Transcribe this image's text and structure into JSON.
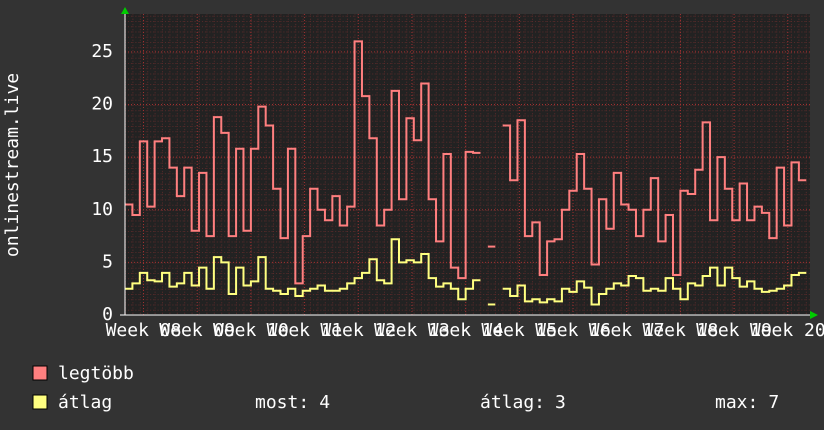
{
  "chart_data": {
    "type": "step-line",
    "y_label": "onlinestream.live",
    "x": [
      0,
      1,
      2,
      3,
      4,
      5,
      6,
      7,
      8,
      9,
      10,
      11,
      12,
      13,
      14,
      15,
      16,
      17,
      18,
      19,
      20,
      21,
      22,
      23,
      24,
      25,
      26,
      27,
      28,
      29,
      30,
      31,
      32,
      33,
      34,
      35,
      36,
      37,
      38,
      39,
      40,
      41,
      42,
      43,
      44,
      45,
      46,
      47,
      48,
      49,
      50,
      51,
      52,
      53,
      54,
      55,
      56,
      57,
      58,
      59,
      60,
      61,
      62,
      63,
      64,
      65,
      66,
      67,
      68,
      69,
      70,
      71,
      72,
      73,
      74,
      75,
      76,
      77,
      78,
      79,
      80,
      81,
      82,
      83,
      84,
      85,
      86,
      87,
      88,
      89,
      90,
      91
    ],
    "xlim": [
      0,
      92.5
    ],
    "xticks": [
      {
        "value": 2.5,
        "label": "Week 08"
      },
      {
        "value": 9.75,
        "label": "Week 09"
      },
      {
        "value": 17,
        "label": "Week 10"
      },
      {
        "value": 24.25,
        "label": "Week 11"
      },
      {
        "value": 31.5,
        "label": "Week 12"
      },
      {
        "value": 38.75,
        "label": "Week 13"
      },
      {
        "value": 46,
        "label": "Week 14"
      },
      {
        "value": 53.25,
        "label": "Week 15"
      },
      {
        "value": 60.5,
        "label": "Week 16"
      },
      {
        "value": 67.75,
        "label": "Week 17"
      },
      {
        "value": 75,
        "label": "Week 18"
      },
      {
        "value": 82.25,
        "label": "Week 19"
      },
      {
        "value": 89.5,
        "label": "Week 20"
      }
    ],
    "ylim": [
      0,
      28.6
    ],
    "yticks": [
      0,
      5,
      10,
      15,
      20,
      25
    ],
    "grid": true,
    "series": [
      {
        "name": "legtöbb",
        "color": "#ff7f7f",
        "values": [
          10.5,
          9.5,
          16.5,
          10.3,
          16.5,
          16.8,
          14,
          11.3,
          14,
          8,
          13.5,
          7.5,
          18.8,
          17.3,
          7.5,
          15.8,
          8,
          15.8,
          19.8,
          18,
          12,
          7.3,
          15.8,
          3,
          7.5,
          12,
          10,
          9,
          11.3,
          8.5,
          10.3,
          26,
          20.8,
          16.8,
          8.5,
          10,
          21.3,
          11,
          18.7,
          16.6,
          22,
          11,
          7,
          15.3,
          4.5,
          3.5,
          15.5,
          15.4,
          null,
          6.5,
          null,
          18,
          12.8,
          18.5,
          7.5,
          8.8,
          3.8,
          7,
          7.2,
          10,
          11.8,
          15.3,
          12,
          4.8,
          11,
          8.2,
          13.5,
          10.5,
          10,
          7.5,
          10,
          13,
          7,
          9.5,
          3.8,
          11.8,
          11.5,
          13.8,
          18.3,
          9,
          15,
          12,
          9,
          12.5,
          9,
          10.3,
          9.7,
          7.3,
          14,
          8.5,
          14.5,
          12.8
        ]
      },
      {
        "name": "átlag",
        "color": "#ffff80",
        "values": [
          2.5,
          3,
          4,
          3.3,
          3.2,
          4,
          2.7,
          3,
          4,
          2.8,
          4.5,
          2.5,
          5.5,
          5,
          2,
          4.5,
          2.8,
          3.2,
          5.5,
          2.5,
          2.3,
          2,
          2.5,
          1.8,
          2.3,
          2.5,
          2.8,
          2.3,
          2.3,
          2.5,
          3,
          3.5,
          4,
          5.3,
          3.3,
          3,
          7.2,
          5,
          5.2,
          5,
          5.8,
          3.5,
          2.7,
          3,
          2.5,
          1.5,
          2.5,
          3.3,
          null,
          1,
          null,
          2.5,
          1.8,
          2.8,
          1.3,
          1.5,
          1.2,
          1.5,
          1.3,
          2.5,
          2.2,
          3.2,
          2.6,
          1,
          2,
          2.5,
          3,
          2.8,
          3.7,
          3.5,
          2.3,
          2.5,
          2.3,
          3.5,
          2.5,
          1.5,
          3,
          2.8,
          3.7,
          4.5,
          2.8,
          4.5,
          3.5,
          2.7,
          3.2,
          2.5,
          2.2,
          2.3,
          2.5,
          2.8,
          3.8,
          4
        ]
      }
    ],
    "stats": [
      {
        "label": "most:",
        "value": 4
      },
      {
        "label": "átlag:",
        "value": 3
      },
      {
        "label": "max:",
        "value": 7
      }
    ]
  }
}
